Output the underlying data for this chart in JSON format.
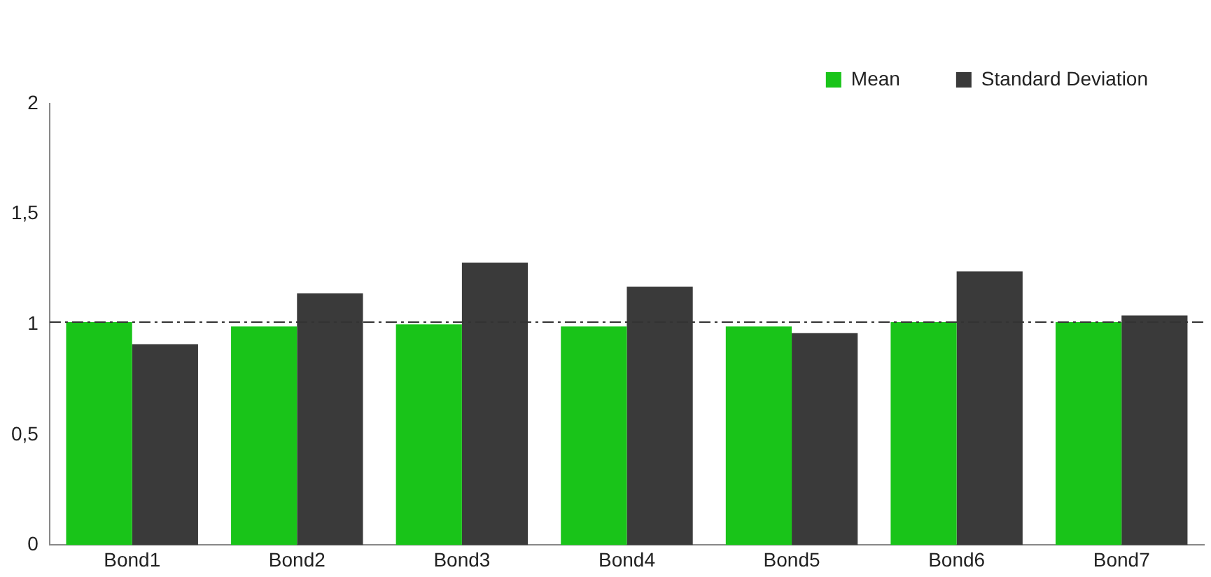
{
  "chart_data": {
    "type": "bar",
    "categories": [
      "Bond1",
      "Bond2",
      "Bond3",
      "Bond4",
      "Bond5",
      "Bond6",
      "Bond7"
    ],
    "series": [
      {
        "name": "Mean",
        "color": "#19c419",
        "values": [
          1.01,
          0.99,
          1.0,
          0.99,
          0.99,
          1.01,
          1.01
        ]
      },
      {
        "name": "Standard Deviation",
        "color": "#3a3a3a",
        "values": [
          0.91,
          1.14,
          1.28,
          1.17,
          0.96,
          1.24,
          1.04
        ]
      }
    ],
    "ylim": [
      0,
      2
    ],
    "yticks": [
      0,
      {
        "value": 0.5,
        "label": "0,5"
      },
      1,
      {
        "value": 1.5,
        "label": "1,5"
      },
      2
    ],
    "ref_lines": [
      {
        "axis": "y",
        "value": 1.01,
        "color": "#333333",
        "line_style": "dashed"
      }
    ],
    "grid": false,
    "legend": "top right"
  }
}
